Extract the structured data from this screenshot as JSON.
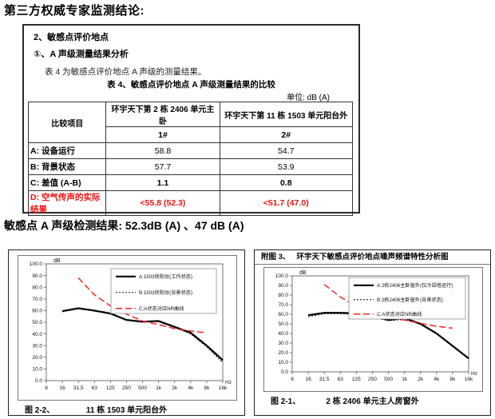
{
  "page_title": "第三方权威专家监测结论:",
  "report_box": {
    "section_heading": "2、敏感点评价地点",
    "analysis_heading": "①、A 声级测量结果分析",
    "table_intro": "表 4 为敏感点评价地点 A 声级的测量结果。",
    "table_title": "表 4、敏感点评价地点 A 声级测量结果的比较",
    "unit_label": "单位:  dB (A)",
    "table": {
      "col_header_item": "比较项目",
      "col_header_1": "环宇天下第 2 栋 2406 单元主卧",
      "col_header_2": "环宇天下第 11 栋 1503 单元阳台外",
      "sub_header_1": "1#",
      "sub_header_2": "2#",
      "rows": [
        {
          "label": "A: 设备运行",
          "v1": "58.8",
          "v2": "54.7"
        },
        {
          "label": "B: 背景状态",
          "v1": "57.7",
          "v2": "53.9"
        },
        {
          "label": "C: 差值 (A-B)",
          "v1": "1.1",
          "v2": "0.8"
        },
        {
          "label": "D: 空气传声的实际结果",
          "v1": "<55.8 (52.3)",
          "v2": "<51.7 (47.0)"
        }
      ]
    }
  },
  "result_line": "敏感点 A 声级检测结果: 52.3dB (A) 、47 dB (A)",
  "colors": {
    "highlight_red": "#f01010",
    "nr_curve_red": "#ff2020",
    "line_black": "#000000"
  },
  "chart_data": [
    {
      "type": "line",
      "figure_label": "图 2-2、",
      "figure_caption": "11 栋 1503 单元阳台外",
      "ylabel": "dB",
      "xlabel": "Hz",
      "ylim": [
        0,
        100
      ],
      "ytick_step": 10,
      "grid": false,
      "legend_position": "top-right",
      "x_categories": [
        "8",
        "16",
        "31.5",
        "63",
        "125",
        "250",
        "500",
        "1k",
        "2k",
        "4k",
        "8k",
        "16k"
      ],
      "series": [
        {
          "name": "A:1503房阳台(工作状态)",
          "style": "solid-black",
          "values": [
            null,
            59.5,
            62,
            60,
            57.5,
            52,
            50.5,
            51,
            46,
            41,
            30,
            17.5
          ]
        },
        {
          "name": "B:1503房阳台(背景状态)",
          "style": "dotted-black",
          "values": [
            null,
            59,
            61.5,
            59.5,
            57,
            51.5,
            50,
            50.5,
            45.5,
            40,
            29,
            15.5
          ]
        },
        {
          "name": "C:A状态对应NR曲线",
          "style": "dashed-red",
          "values": [
            null,
            null,
            88,
            73.5,
            64,
            57,
            51,
            48,
            44.5,
            42.5,
            41,
            null
          ]
        }
      ]
    },
    {
      "type": "line",
      "header_label": "附图 3、",
      "header_title": "环宇天下敏感点评价地点噪声频谱特性分析图",
      "figure_label": "图 2-1、",
      "figure_caption": "2 栋 2406 单元主人房窗外",
      "ylabel": "dB",
      "xlabel": "Hz",
      "ylim": [
        0,
        100
      ],
      "ytick_step": 10,
      "grid": false,
      "legend_position": "top-right",
      "x_categories": [
        "8",
        "16",
        "31.5",
        "63",
        "125",
        "250",
        "500",
        "1k",
        "2k",
        "4k",
        "8k",
        "16k"
      ],
      "series": [
        {
          "name": "A:2栋2406主卧窗外(仅冷却塔运行)",
          "style": "solid-black",
          "values": [
            null,
            59,
            61.5,
            61.5,
            61,
            58,
            54,
            56,
            50,
            40,
            27,
            14
          ]
        },
        {
          "name": "B:2栋2406主卧窗外(背景状态)",
          "style": "dotted-black",
          "values": [
            null,
            57.5,
            60.5,
            60.5,
            60,
            56.5,
            53.5,
            54.5,
            49.5,
            39.5,
            27,
            14
          ]
        },
        {
          "name": "C:A状态对应NR曲线",
          "style": "dashed-red",
          "values": [
            null,
            null,
            91,
            78,
            68.5,
            61,
            56.5,
            54,
            50.5,
            47.5,
            45.5,
            null
          ]
        }
      ]
    }
  ]
}
